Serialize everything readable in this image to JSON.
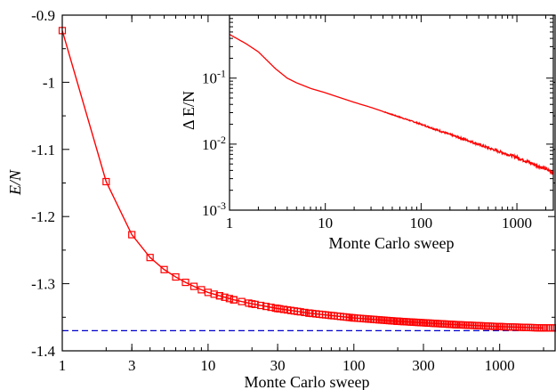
{
  "chart_data": [
    {
      "type": "line",
      "role": "main",
      "xlabel": "Monte Carlo sweep",
      "ylabel": "E/N",
      "x_scale": "log",
      "xlim": [
        1,
        2400
      ],
      "ylim": [
        -1.4,
        -0.9
      ],
      "x_ticks": [
        {
          "v": 1,
          "label": "1"
        },
        {
          "v": 3,
          "label": "3"
        },
        {
          "v": 10,
          "label": "10"
        },
        {
          "v": 30,
          "label": "30"
        },
        {
          "v": 100,
          "label": "100"
        },
        {
          "v": 300,
          "label": "300"
        },
        {
          "v": 1000,
          "label": "1000"
        }
      ],
      "y_ticks": [
        {
          "v": -0.9,
          "label": "-0.9"
        },
        {
          "v": -1.0,
          "label": "-1"
        },
        {
          "v": -1.1,
          "label": "-1.1"
        },
        {
          "v": -1.2,
          "label": "-1.2"
        },
        {
          "v": -1.3,
          "label": "-1.3"
        },
        {
          "v": -1.4,
          "label": "-1.4"
        }
      ],
      "grid": false,
      "series": [
        {
          "marker": "square",
          "color": "#ff0000",
          "x": [
            1,
            2,
            3,
            4,
            5,
            6,
            7,
            8,
            9,
            10,
            12,
            15,
            20,
            30,
            50,
            100,
            200,
            500,
            1000,
            2000
          ],
          "y": [
            -0.923,
            -1.148,
            -1.227,
            -1.261,
            -1.279,
            -1.29,
            -1.298,
            -1.304,
            -1.309,
            -1.313,
            -1.318,
            -1.324,
            -1.33,
            -1.337,
            -1.344,
            -1.351,
            -1.356,
            -1.361,
            -1.364,
            -1.366
          ]
        }
      ],
      "reference_line": {
        "y": -1.37,
        "color": "#0000cc",
        "style": "dashed"
      }
    },
    {
      "type": "line",
      "role": "inset",
      "xlabel": "Monte Carlo sweep",
      "ylabel": "Δ E/N",
      "x_scale": "log",
      "y_scale": "log",
      "xlim": [
        1,
        2400
      ],
      "ylim": [
        0.001,
        0.9
      ],
      "x_ticks": [
        {
          "v": 1,
          "label": "1"
        },
        {
          "v": 10,
          "label": "10"
        },
        {
          "v": 100,
          "label": "100"
        },
        {
          "v": 1000,
          "label": "1000"
        }
      ],
      "y_ticks": [
        {
          "v": 0.001,
          "base": "10",
          "exp": "-3"
        },
        {
          "v": 0.01,
          "base": "10",
          "exp": "-2"
        },
        {
          "v": 0.1,
          "base": "10",
          "exp": "-1"
        }
      ],
      "grid": false,
      "series": [
        {
          "color": "#ff0000",
          "x": [
            1,
            1.5,
            2,
            3,
            4,
            5,
            7,
            10,
            20,
            30,
            50,
            100,
            200,
            300,
            500,
            1000,
            2000,
            2400
          ],
          "y": [
            0.46,
            0.33,
            0.25,
            0.14,
            0.1,
            0.085,
            0.07,
            0.06,
            0.043,
            0.036,
            0.028,
            0.02,
            0.014,
            0.0115,
            0.0088,
            0.0063,
            0.0042,
            0.0037
          ]
        }
      ]
    }
  ]
}
